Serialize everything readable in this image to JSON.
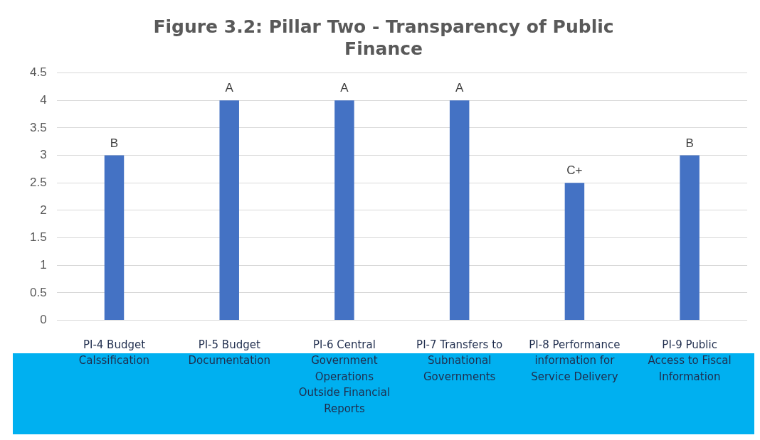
{
  "chart_data": {
    "type": "bar",
    "title": "Figure 3.2: Pillar Two - Transparency of Public Finance",
    "categories": [
      "PI-4 Budget Calssification",
      "PI-5 Budget Documentation",
      "PI-6 Central Government Operations Outside Financial Reports",
      "PI-7 Transfers to Subnational Governments",
      "PI-8 Performance information for Service Delivery",
      "PI-9 Public Access to Fiscal Information"
    ],
    "values": [
      3,
      4,
      4,
      4,
      2.5,
      3
    ],
    "value_labels": [
      "B",
      "A",
      "A",
      "A",
      "C+",
      "B"
    ],
    "color": "#4472c4",
    "ylim": [
      0,
      4.5
    ],
    "yticks": [
      0,
      0.5,
      1,
      1.5,
      2,
      2.5,
      3,
      3.5,
      4,
      4.5
    ],
    "grid": "y"
  }
}
